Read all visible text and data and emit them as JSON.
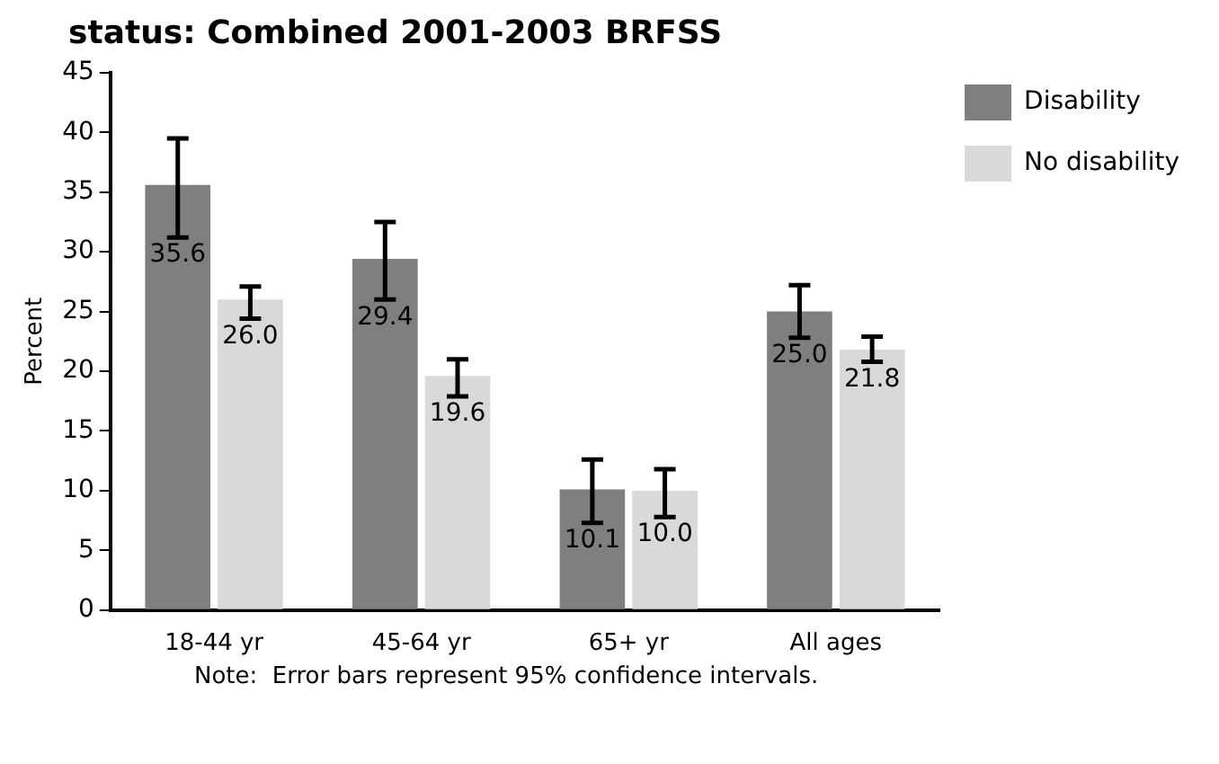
{
  "chart_data": {
    "type": "bar",
    "title": "status: Combined 2001-2003 BRFSS",
    "ylabel": "Percent",
    "categories": [
      "18-44 yr",
      "45-64 yr",
      "65+ yr",
      "All ages"
    ],
    "series": [
      {
        "name": "Disability",
        "color": "#7f7f7f",
        "values": [
          35.6,
          29.4,
          10.1,
          25.0
        ],
        "value_labels": [
          "35.6",
          "29.4",
          "10.1",
          "25.0"
        ],
        "errors": [
          [
            31.2,
            39.5
          ],
          [
            26.0,
            32.5
          ],
          [
            7.3,
            12.6
          ],
          [
            22.8,
            27.2
          ]
        ]
      },
      {
        "name": "No disability",
        "color": "#d9d9d9",
        "values": [
          26.0,
          19.6,
          10.0,
          21.8
        ],
        "value_labels": [
          "26.0",
          "19.6",
          "10.0",
          "21.8"
        ],
        "errors": [
          [
            24.4,
            27.1
          ],
          [
            17.9,
            21.0
          ],
          [
            7.8,
            11.8
          ],
          [
            20.8,
            22.9
          ]
        ]
      }
    ],
    "ylim": [
      0,
      45
    ],
    "yticks": [
      0,
      5,
      10,
      15,
      20,
      25,
      30,
      35,
      40,
      45
    ],
    "grid": false,
    "legend": "top right",
    "annotations": [
      "Note:  Error bars represent 95% confidence intervals."
    ]
  }
}
